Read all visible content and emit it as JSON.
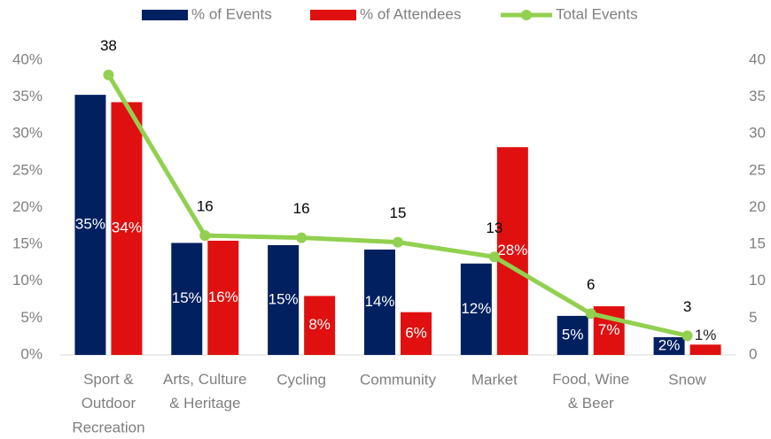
{
  "chart_data": {
    "type": "bar",
    "categories": [
      "Sport &\nOutdoor\nRecreation",
      "Arts, Culture\n& Heritage",
      "Cycling",
      "Community",
      "Market",
      "Food, Wine\n& Beer",
      "Snow"
    ],
    "series": [
      {
        "name": "% of Events",
        "color": "#002060",
        "values": [
          35.3,
          15.2,
          14.9,
          14.3,
          12.4,
          5.3,
          2.4
        ],
        "value_labels": [
          "35%",
          "15%",
          "15%",
          "14%",
          "12%",
          "5%",
          "2%"
        ]
      },
      {
        "name": "% of Attendees",
        "color": "#e01010",
        "values": [
          34.3,
          15.5,
          8.0,
          5.8,
          28.2,
          6.6,
          1.4
        ],
        "value_labels": [
          "34%",
          "16%",
          "8%",
          "6%",
          "28%",
          "7%",
          "1%"
        ]
      },
      {
        "name": "Total Events",
        "color": "#92d050",
        "type": "line",
        "axis": "y2",
        "values": [
          38,
          16.2,
          15.9,
          15.3,
          13.3,
          5.6,
          2.6
        ],
        "value_labels": [
          "38",
          "16",
          "16",
          "15",
          "13",
          "6",
          "3"
        ]
      }
    ],
    "ylim": [
      0,
      40
    ],
    "yticks": [
      {
        "value": 0,
        "label": "0%"
      },
      {
        "value": 5,
        "label": "5%"
      },
      {
        "value": 10,
        "label": "10%"
      },
      {
        "value": 15,
        "label": "15%"
      },
      {
        "value": 20,
        "label": "20%"
      },
      {
        "value": 25,
        "label": "25%"
      },
      {
        "value": 30,
        "label": "30%"
      },
      {
        "value": 35,
        "label": "35%"
      },
      {
        "value": 40,
        "label": "40%"
      }
    ],
    "y2lim": [
      0,
      40
    ],
    "y2ticks": [
      0,
      5,
      10,
      15,
      20,
      25,
      30,
      35,
      40
    ],
    "legend": "top"
  }
}
